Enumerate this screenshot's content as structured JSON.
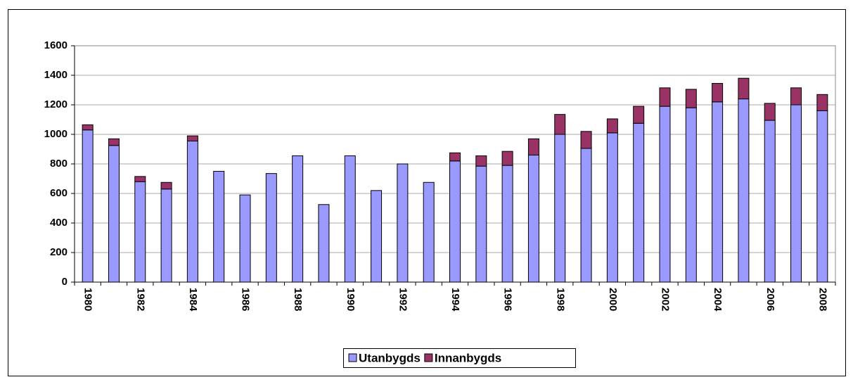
{
  "chart_data": {
    "type": "stacked-bar",
    "categories": [
      "1980",
      null,
      "1982",
      null,
      "1984",
      null,
      "1986",
      null,
      "1988",
      null,
      "1990",
      null,
      "1992",
      null,
      "1994",
      null,
      "1996",
      null,
      "1998",
      null,
      "2000",
      null,
      "2002",
      null,
      "2004",
      null,
      "2006",
      null,
      "2008"
    ],
    "series": [
      {
        "name": "Utanbygds",
        "color": "#9999ff",
        "values": [
          1030,
          925,
          680,
          630,
          955,
          750,
          590,
          735,
          855,
          525,
          855,
          620,
          800,
          675,
          820,
          785,
          790,
          860,
          1000,
          905,
          1010,
          1075,
          1190,
          1180,
          1220,
          1240,
          1095,
          1200,
          1160
        ]
      },
      {
        "name": "Innanbygds",
        "color": "#993366",
        "values": [
          35,
          45,
          35,
          45,
          35,
          0,
          0,
          0,
          0,
          0,
          0,
          0,
          0,
          0,
          55,
          70,
          95,
          110,
          135,
          115,
          95,
          115,
          125,
          125,
          125,
          140,
          115,
          115,
          110
        ]
      }
    ],
    "ylim": [
      0,
      1600
    ],
    "yticks": [
      0,
      200,
      400,
      600,
      800,
      1000,
      1200,
      1400,
      1600
    ],
    "grid": true,
    "legend": "bottom"
  }
}
